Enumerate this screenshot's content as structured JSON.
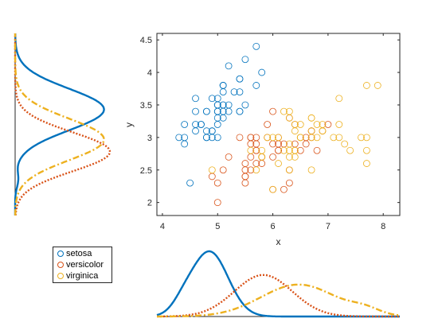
{
  "colors": {
    "setosa": "#0072BD",
    "versicolor": "#D95319",
    "virginica": "#EDB120",
    "axis": "#262626"
  },
  "chart_data": [
    {
      "type": "scatter",
      "xlabel": "x",
      "ylabel": "y",
      "xlim": [
        3.9,
        8.3
      ],
      "ylim": [
        1.8,
        4.6
      ],
      "xticks": [
        4,
        5,
        6,
        7,
        8
      ],
      "yticks": [
        2,
        2.5,
        3,
        3.5,
        4,
        4.5
      ],
      "grid": false,
      "series": [
        {
          "name": "setosa",
          "marker": "circle-open",
          "points": [
            [
              5.1,
              3.5
            ],
            [
              4.9,
              3.0
            ],
            [
              4.7,
              3.2
            ],
            [
              4.6,
              3.1
            ],
            [
              5.0,
              3.6
            ],
            [
              5.4,
              3.9
            ],
            [
              4.6,
              3.4
            ],
            [
              5.0,
              3.4
            ],
            [
              4.4,
              2.9
            ],
            [
              4.9,
              3.1
            ],
            [
              5.4,
              3.7
            ],
            [
              4.8,
              3.4
            ],
            [
              4.8,
              3.0
            ],
            [
              4.3,
              3.0
            ],
            [
              5.8,
              4.0
            ],
            [
              5.7,
              4.4
            ],
            [
              5.4,
              3.9
            ],
            [
              5.1,
              3.5
            ],
            [
              5.7,
              3.8
            ],
            [
              5.1,
              3.8
            ],
            [
              5.4,
              3.4
            ],
            [
              5.1,
              3.7
            ],
            [
              4.6,
              3.6
            ],
            [
              5.1,
              3.3
            ],
            [
              4.8,
              3.4
            ],
            [
              5.0,
              3.0
            ],
            [
              5.0,
              3.4
            ],
            [
              5.2,
              3.5
            ],
            [
              5.2,
              3.4
            ],
            [
              4.7,
              3.2
            ],
            [
              4.8,
              3.1
            ],
            [
              5.4,
              3.4
            ],
            [
              5.2,
              4.1
            ],
            [
              5.5,
              4.2
            ],
            [
              4.9,
              3.1
            ],
            [
              5.0,
              3.2
            ],
            [
              5.5,
              3.5
            ],
            [
              4.9,
              3.6
            ],
            [
              4.4,
              3.0
            ],
            [
              5.1,
              3.4
            ],
            [
              5.0,
              3.5
            ],
            [
              4.5,
              2.3
            ],
            [
              4.4,
              3.2
            ],
            [
              5.0,
              3.5
            ],
            [
              5.1,
              3.8
            ],
            [
              4.8,
              3.0
            ],
            [
              5.1,
              3.8
            ],
            [
              4.6,
              3.2
            ],
            [
              5.3,
              3.7
            ],
            [
              5.0,
              3.3
            ]
          ]
        },
        {
          "name": "versicolor",
          "marker": "circle-open",
          "points": [
            [
              7.0,
              3.2
            ],
            [
              6.4,
              3.2
            ],
            [
              6.9,
              3.1
            ],
            [
              5.5,
              2.3
            ],
            [
              6.5,
              2.8
            ],
            [
              5.7,
              2.8
            ],
            [
              6.3,
              3.3
            ],
            [
              4.9,
              2.4
            ],
            [
              6.6,
              2.9
            ],
            [
              5.2,
              2.7
            ],
            [
              5.0,
              2.0
            ],
            [
              5.9,
              3.0
            ],
            [
              6.0,
              2.2
            ],
            [
              6.1,
              2.9
            ],
            [
              5.6,
              2.9
            ],
            [
              6.7,
              3.1
            ],
            [
              5.6,
              3.0
            ],
            [
              5.8,
              2.7
            ],
            [
              6.2,
              2.2
            ],
            [
              5.6,
              2.5
            ],
            [
              5.9,
              3.2
            ],
            [
              6.1,
              2.8
            ],
            [
              6.3,
              2.5
            ],
            [
              6.1,
              2.8
            ],
            [
              6.4,
              2.9
            ],
            [
              6.6,
              3.0
            ],
            [
              6.8,
              2.8
            ],
            [
              6.7,
              3.0
            ],
            [
              6.0,
              2.9
            ],
            [
              5.7,
              2.6
            ],
            [
              5.5,
              2.4
            ],
            [
              5.5,
              2.4
            ],
            [
              5.8,
              2.7
            ],
            [
              6.0,
              2.7
            ],
            [
              5.4,
              3.0
            ],
            [
              6.0,
              3.4
            ],
            [
              6.7,
              3.1
            ],
            [
              6.3,
              2.3
            ],
            [
              5.6,
              3.0
            ],
            [
              5.5,
              2.5
            ],
            [
              5.5,
              2.6
            ],
            [
              6.1,
              3.0
            ],
            [
              5.8,
              2.6
            ],
            [
              5.0,
              2.3
            ],
            [
              5.6,
              2.7
            ],
            [
              5.7,
              3.0
            ],
            [
              5.7,
              2.9
            ],
            [
              6.2,
              2.9
            ],
            [
              5.1,
              2.5
            ],
            [
              5.7,
              2.8
            ]
          ]
        },
        {
          "name": "virginica",
          "marker": "circle-open",
          "points": [
            [
              6.3,
              3.3
            ],
            [
              5.8,
              2.7
            ],
            [
              7.1,
              3.0
            ],
            [
              6.3,
              2.9
            ],
            [
              6.5,
              3.0
            ],
            [
              7.6,
              3.0
            ],
            [
              4.9,
              2.5
            ],
            [
              7.3,
              2.9
            ],
            [
              6.7,
              2.5
            ],
            [
              7.2,
              3.6
            ],
            [
              6.5,
              3.2
            ],
            [
              6.4,
              2.7
            ],
            [
              6.8,
              3.0
            ],
            [
              5.7,
              2.5
            ],
            [
              5.8,
              2.8
            ],
            [
              6.4,
              3.2
            ],
            [
              6.5,
              3.0
            ],
            [
              7.7,
              3.8
            ],
            [
              7.7,
              2.6
            ],
            [
              6.0,
              2.2
            ],
            [
              6.9,
              3.2
            ],
            [
              5.6,
              2.8
            ],
            [
              7.7,
              2.8
            ],
            [
              6.3,
              2.7
            ],
            [
              6.7,
              3.3
            ],
            [
              7.2,
              3.2
            ],
            [
              6.2,
              2.8
            ],
            [
              6.1,
              3.0
            ],
            [
              6.4,
              2.8
            ],
            [
              7.2,
              3.0
            ],
            [
              7.4,
              2.8
            ],
            [
              7.9,
              3.8
            ],
            [
              6.4,
              2.8
            ],
            [
              6.3,
              2.8
            ],
            [
              6.1,
              2.6
            ],
            [
              7.7,
              3.0
            ],
            [
              6.3,
              3.4
            ],
            [
              6.4,
              3.1
            ],
            [
              6.0,
              3.0
            ],
            [
              6.9,
              3.1
            ],
            [
              6.7,
              3.1
            ],
            [
              6.9,
              3.1
            ],
            [
              5.8,
              2.7
            ],
            [
              6.8,
              3.2
            ],
            [
              6.7,
              3.3
            ],
            [
              6.7,
              3.0
            ],
            [
              6.3,
              2.5
            ],
            [
              6.5,
              3.0
            ],
            [
              6.2,
              3.4
            ],
            [
              5.9,
              3.0
            ]
          ]
        }
      ]
    },
    {
      "type": "line",
      "role": "kernel density of y (left marginal)",
      "y_range": [
        1.8,
        4.6
      ],
      "series": [
        {
          "name": "setosa",
          "style": "solid",
          "mean": 3.43,
          "sd": 0.32,
          "bumps": [
            [
              2.35,
              0.04,
              0.12
            ]
          ]
        },
        {
          "name": "versicolor",
          "style": "dotted",
          "mean": 2.78,
          "sd": 0.3
        },
        {
          "name": "virginica",
          "style": "dashdot",
          "mean": 2.97,
          "sd": 0.32
        }
      ]
    },
    {
      "type": "line",
      "role": "kernel density of x (bottom marginal)",
      "x_range": [
        4.1,
        8.3
      ],
      "series": [
        {
          "name": "setosa",
          "style": "solid",
          "mean": 5.01,
          "sd": 0.32,
          "bumps": [
            [
              4.55,
              0.15,
              0.18
            ]
          ]
        },
        {
          "name": "versicolor",
          "style": "dotted",
          "mean": 5.94,
          "sd": 0.5
        },
        {
          "name": "virginica",
          "style": "dashdot",
          "mean": 6.55,
          "sd": 0.65,
          "bumps": [
            [
              7.7,
              0.1,
              0.25
            ]
          ]
        }
      ]
    }
  ],
  "legend": {
    "entries": [
      {
        "label": "setosa",
        "color": "#0072BD"
      },
      {
        "label": "versicolor",
        "color": "#D95319"
      },
      {
        "label": "virginica",
        "color": "#EDB120"
      }
    ],
    "placement": "lower-left"
  }
}
